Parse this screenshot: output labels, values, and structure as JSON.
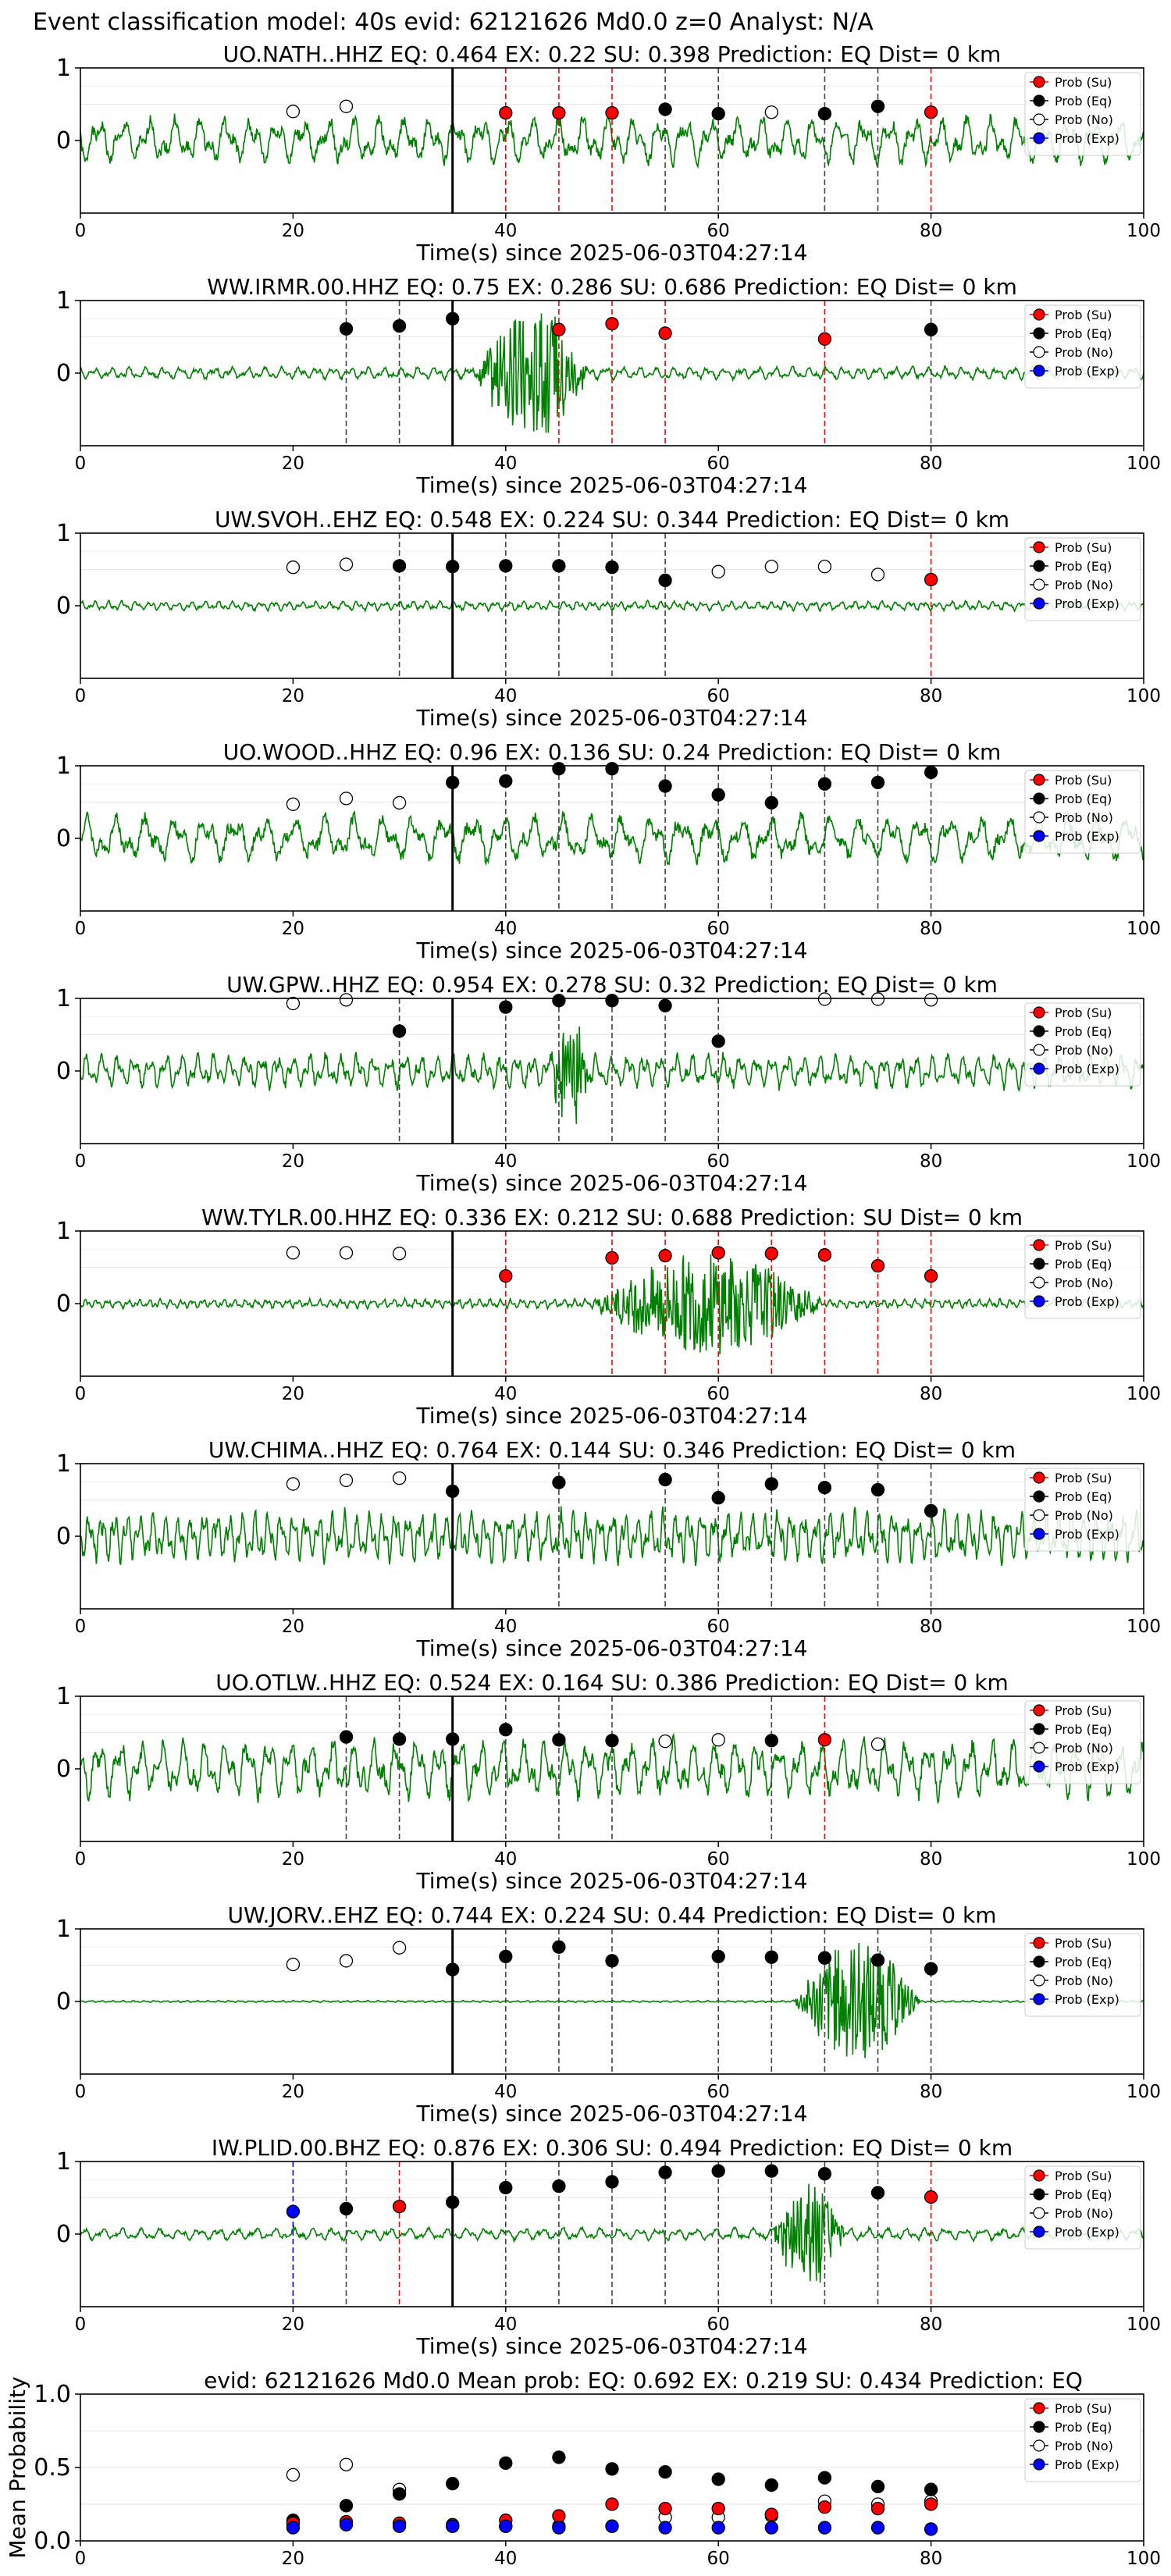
{
  "suptitle": "Event classification model: 40s evid: 62121626 Md0.0 z=0 Analyst: N/A",
  "xlabel": "Time(s) since 2025-06-03T04:27:14",
  "legend": [
    "Prob (Su)",
    "Prob (Eq)",
    "Prob (No)",
    "Prob (Exp)"
  ],
  "colors": {
    "su": "#ff0000",
    "eq": "#000000",
    "no": "#ffffff",
    "exp": "#0000ff",
    "wave": "#008000"
  },
  "chart_data": [
    {
      "type": "line",
      "title": "UO.NATH..HHZ   EQ: 0.464  EX: 0.22  SU: 0.398   Prediction: EQ    Dist= 0 km",
      "xlim": [
        0,
        100
      ],
      "ylim": [
        -1,
        1
      ],
      "xticks": [
        0,
        20,
        40,
        60,
        80,
        100
      ],
      "yticks": [
        0,
        1
      ],
      "pick": 35,
      "wave": {
        "amp": 0.3,
        "burst": null,
        "drift": 0.0,
        "seed": 1,
        "period": 2.4
      },
      "points": [
        {
          "x": 20,
          "cls": "no",
          "y": 0.4
        },
        {
          "x": 25,
          "cls": "no",
          "y": 0.47
        },
        {
          "x": 40,
          "cls": "su",
          "y": 0.38
        },
        {
          "x": 45,
          "cls": "su",
          "y": 0.38
        },
        {
          "x": 50,
          "cls": "su",
          "y": 0.38
        },
        {
          "x": 55,
          "cls": "eq",
          "y": 0.43
        },
        {
          "x": 60,
          "cls": "eq",
          "y": 0.37
        },
        {
          "x": 65,
          "cls": "no",
          "y": 0.39
        },
        {
          "x": 70,
          "cls": "eq",
          "y": 0.37
        },
        {
          "x": 75,
          "cls": "eq",
          "y": 0.47
        },
        {
          "x": 80,
          "cls": "su",
          "y": 0.39
        }
      ]
    },
    {
      "type": "line",
      "title": "WW.IRMR.00.HHZ   EQ: 0.75  EX: 0.286  SU: 0.686   Prediction: EQ    Dist= 0 km",
      "xlim": [
        0,
        100
      ],
      "ylim": [
        -1,
        1
      ],
      "xticks": [
        0,
        20,
        40,
        60,
        80,
        100
      ],
      "yticks": [
        0,
        1
      ],
      "pick": 35,
      "wave": {
        "amp": 0.08,
        "burst": [
          37,
          48,
          0.9
        ],
        "drift": 0.0,
        "seed": 2,
        "period": 1.6
      },
      "points": [
        {
          "x": 25,
          "cls": "eq",
          "y": 0.61
        },
        {
          "x": 30,
          "cls": "eq",
          "y": 0.65
        },
        {
          "x": 35,
          "cls": "eq",
          "y": 0.75
        },
        {
          "x": 45,
          "cls": "su",
          "y": 0.6
        },
        {
          "x": 50,
          "cls": "su",
          "y": 0.68
        },
        {
          "x": 55,
          "cls": "su",
          "y": 0.55
        },
        {
          "x": 70,
          "cls": "su",
          "y": 0.47
        },
        {
          "x": 80,
          "cls": "eq",
          "y": 0.6
        }
      ]
    },
    {
      "type": "line",
      "title": "UW.SVOH..EHZ   EQ: 0.548  EX: 0.224  SU: 0.344   Prediction: EQ    Dist= 0 km",
      "xlim": [
        0,
        100
      ],
      "ylim": [
        -1,
        1
      ],
      "xticks": [
        0,
        20,
        40,
        60,
        80,
        100
      ],
      "yticks": [
        0,
        1
      ],
      "pick": 35,
      "wave": {
        "amp": 0.06,
        "burst": null,
        "drift": 0.0,
        "seed": 3,
        "period": 1.3
      },
      "points": [
        {
          "x": 20,
          "cls": "no",
          "y": 0.53
        },
        {
          "x": 25,
          "cls": "no",
          "y": 0.57
        },
        {
          "x": 30,
          "cls": "eq",
          "y": 0.55
        },
        {
          "x": 35,
          "cls": "eq",
          "y": 0.54
        },
        {
          "x": 40,
          "cls": "eq",
          "y": 0.55
        },
        {
          "x": 45,
          "cls": "eq",
          "y": 0.55
        },
        {
          "x": 50,
          "cls": "eq",
          "y": 0.53
        },
        {
          "x": 55,
          "cls": "eq",
          "y": 0.35
        },
        {
          "x": 60,
          "cls": "no",
          "y": 0.47
        },
        {
          "x": 65,
          "cls": "no",
          "y": 0.54
        },
        {
          "x": 70,
          "cls": "no",
          "y": 0.54
        },
        {
          "x": 75,
          "cls": "no",
          "y": 0.43
        },
        {
          "x": 80,
          "cls": "su",
          "y": 0.36
        }
      ]
    },
    {
      "type": "line",
      "title": "UO.WOOD..HHZ   EQ: 0.96  EX: 0.136  SU: 0.24   Prediction: EQ    Dist= 0 km",
      "xlim": [
        0,
        100
      ],
      "ylim": [
        -1,
        1
      ],
      "xticks": [
        0,
        20,
        40,
        60,
        80,
        100
      ],
      "yticks": [
        0,
        1
      ],
      "pick": 35,
      "wave": {
        "amp": 0.3,
        "burst": null,
        "drift": 0.0,
        "seed": 4,
        "period": 2.8
      },
      "points": [
        {
          "x": 20,
          "cls": "no",
          "y": 0.47
        },
        {
          "x": 25,
          "cls": "no",
          "y": 0.55
        },
        {
          "x": 30,
          "cls": "no",
          "y": 0.49
        },
        {
          "x": 35,
          "cls": "eq",
          "y": 0.77
        },
        {
          "x": 40,
          "cls": "eq",
          "y": 0.79
        },
        {
          "x": 45,
          "cls": "eq",
          "y": 0.96
        },
        {
          "x": 50,
          "cls": "eq",
          "y": 0.96
        },
        {
          "x": 55,
          "cls": "eq",
          "y": 0.72
        },
        {
          "x": 60,
          "cls": "eq",
          "y": 0.6
        },
        {
          "x": 65,
          "cls": "eq",
          "y": 0.49
        },
        {
          "x": 70,
          "cls": "eq",
          "y": 0.75
        },
        {
          "x": 75,
          "cls": "eq",
          "y": 0.77
        },
        {
          "x": 80,
          "cls": "eq",
          "y": 0.91
        }
      ]
    },
    {
      "type": "line",
      "title": "UW.GPW..HHZ   EQ: 0.954  EX: 0.278  SU: 0.32   Prediction: EQ    Dist= 0 km",
      "xlim": [
        0,
        100
      ],
      "ylim": [
        -1,
        1
      ],
      "xticks": [
        0,
        20,
        40,
        60,
        80,
        100
      ],
      "yticks": [
        0,
        1
      ],
      "pick": 35,
      "wave": {
        "amp": 0.22,
        "burst": [
          44,
          48,
          0.7
        ],
        "drift": 0.0,
        "seed": 5,
        "period": 1.5
      },
      "points": [
        {
          "x": 20,
          "cls": "no",
          "y": 0.93
        },
        {
          "x": 25,
          "cls": "no",
          "y": 0.98
        },
        {
          "x": 30,
          "cls": "eq",
          "y": 0.55
        },
        {
          "x": 40,
          "cls": "eq",
          "y": 0.88
        },
        {
          "x": 45,
          "cls": "eq",
          "y": 0.97
        },
        {
          "x": 50,
          "cls": "eq",
          "y": 0.97
        },
        {
          "x": 55,
          "cls": "eq",
          "y": 0.9
        },
        {
          "x": 60,
          "cls": "eq",
          "y": 0.41
        },
        {
          "x": 70,
          "cls": "no",
          "y": 0.99
        },
        {
          "x": 75,
          "cls": "no",
          "y": 0.99
        },
        {
          "x": 80,
          "cls": "no",
          "y": 0.98
        }
      ]
    },
    {
      "type": "line",
      "title": "WW.TYLR.00.HHZ   EQ: 0.336  EX: 0.212  SU: 0.688   Prediction: SU    Dist= 0 km",
      "xlim": [
        0,
        100
      ],
      "ylim": [
        -1,
        1
      ],
      "xticks": [
        0,
        20,
        40,
        60,
        80,
        100
      ],
      "yticks": [
        0,
        1
      ],
      "pick": 35,
      "wave": {
        "amp": 0.06,
        "burst": [
          48,
          70,
          0.7
        ],
        "drift": 0.0,
        "seed": 6,
        "period": 1.0
      },
      "points": [
        {
          "x": 20,
          "cls": "no",
          "y": 0.7
        },
        {
          "x": 25,
          "cls": "no",
          "y": 0.7
        },
        {
          "x": 30,
          "cls": "no",
          "y": 0.69
        },
        {
          "x": 40,
          "cls": "su",
          "y": 0.38
        },
        {
          "x": 50,
          "cls": "su",
          "y": 0.63
        },
        {
          "x": 55,
          "cls": "su",
          "y": 0.66
        },
        {
          "x": 60,
          "cls": "su",
          "y": 0.7
        },
        {
          "x": 65,
          "cls": "su",
          "y": 0.69
        },
        {
          "x": 70,
          "cls": "su",
          "y": 0.67
        },
        {
          "x": 75,
          "cls": "su",
          "y": 0.52
        },
        {
          "x": 80,
          "cls": "su",
          "y": 0.38
        }
      ]
    },
    {
      "type": "line",
      "title": "UW.CHIMA..HHZ   EQ: 0.764  EX: 0.144  SU: 0.346   Prediction: EQ    Dist= 0 km",
      "xlim": [
        0,
        100
      ],
      "ylim": [
        -1,
        1
      ],
      "xticks": [
        0,
        20,
        40,
        60,
        80,
        100
      ],
      "yticks": [
        0,
        1
      ],
      "pick": 35,
      "wave": {
        "amp": 0.33,
        "burst": null,
        "drift": 0.0,
        "seed": 7,
        "period": 1.2
      },
      "points": [
        {
          "x": 20,
          "cls": "no",
          "y": 0.72
        },
        {
          "x": 25,
          "cls": "no",
          "y": 0.77
        },
        {
          "x": 30,
          "cls": "no",
          "y": 0.8
        },
        {
          "x": 35,
          "cls": "eq",
          "y": 0.62
        },
        {
          "x": 45,
          "cls": "eq",
          "y": 0.74
        },
        {
          "x": 55,
          "cls": "eq",
          "y": 0.78
        },
        {
          "x": 60,
          "cls": "eq",
          "y": 0.53
        },
        {
          "x": 65,
          "cls": "eq",
          "y": 0.72
        },
        {
          "x": 70,
          "cls": "eq",
          "y": 0.67
        },
        {
          "x": 75,
          "cls": "eq",
          "y": 0.64
        },
        {
          "x": 80,
          "cls": "eq",
          "y": 0.35
        }
      ]
    },
    {
      "type": "line",
      "title": "UO.OTLW..HHZ   EQ: 0.524  EX: 0.164  SU: 0.386   Prediction: EQ    Dist= 0 km",
      "xlim": [
        0,
        100
      ],
      "ylim": [
        -1,
        1
      ],
      "xticks": [
        0,
        20,
        40,
        60,
        80,
        100
      ],
      "yticks": [
        0,
        1
      ],
      "pick": 35,
      "wave": {
        "amp": 0.38,
        "burst": null,
        "drift": 0.0,
        "seed": 8,
        "period": 2.0
      },
      "points": [
        {
          "x": 25,
          "cls": "eq",
          "y": 0.44
        },
        {
          "x": 30,
          "cls": "eq",
          "y": 0.41
        },
        {
          "x": 35,
          "cls": "eq",
          "y": 0.41
        },
        {
          "x": 40,
          "cls": "eq",
          "y": 0.54
        },
        {
          "x": 45,
          "cls": "eq",
          "y": 0.4
        },
        {
          "x": 50,
          "cls": "eq",
          "y": 0.39
        },
        {
          "x": 55,
          "cls": "no",
          "y": 0.38
        },
        {
          "x": 60,
          "cls": "no",
          "y": 0.4
        },
        {
          "x": 65,
          "cls": "eq",
          "y": 0.39
        },
        {
          "x": 70,
          "cls": "su",
          "y": 0.4
        },
        {
          "x": 75,
          "cls": "no",
          "y": 0.34
        }
      ]
    },
    {
      "type": "line",
      "title": "UW.JORV..EHZ   EQ: 0.744  EX: 0.224  SU: 0.44   Prediction: EQ    Dist= 0 km",
      "xlim": [
        0,
        100
      ],
      "ylim": [
        -1,
        1
      ],
      "xticks": [
        0,
        20,
        40,
        60,
        80,
        100
      ],
      "yticks": [
        0,
        1
      ],
      "pick": 35,
      "wave": {
        "amp": 0.012,
        "burst": [
          67,
          79,
          0.85
        ],
        "drift": 0.0,
        "seed": 9,
        "period": 1.0
      },
      "points": [
        {
          "x": 20,
          "cls": "no",
          "y": 0.51
        },
        {
          "x": 25,
          "cls": "no",
          "y": 0.56
        },
        {
          "x": 30,
          "cls": "no",
          "y": 0.74
        },
        {
          "x": 35,
          "cls": "eq",
          "y": 0.44
        },
        {
          "x": 40,
          "cls": "eq",
          "y": 0.62
        },
        {
          "x": 45,
          "cls": "eq",
          "y": 0.75
        },
        {
          "x": 50,
          "cls": "eq",
          "y": 0.56
        },
        {
          "x": 60,
          "cls": "eq",
          "y": 0.62
        },
        {
          "x": 65,
          "cls": "eq",
          "y": 0.61
        },
        {
          "x": 70,
          "cls": "eq",
          "y": 0.6
        },
        {
          "x": 75,
          "cls": "eq",
          "y": 0.57
        },
        {
          "x": 80,
          "cls": "eq",
          "y": 0.45
        }
      ]
    },
    {
      "type": "line",
      "title": "IW.PLID.00.BHZ   EQ: 0.876  EX: 0.306  SU: 0.494   Prediction: EQ    Dist= 0 km",
      "xlim": [
        0,
        100
      ],
      "ylim": [
        -1,
        1
      ],
      "xticks": [
        0,
        20,
        40,
        60,
        80,
        100
      ],
      "yticks": [
        0,
        1
      ],
      "pick": 35,
      "wave": {
        "amp": 0.08,
        "burst": [
          65,
          72,
          0.75
        ],
        "drift": 0.0,
        "seed": 10,
        "period": 1.8
      },
      "points": [
        {
          "x": 20,
          "cls": "exp",
          "y": 0.31
        },
        {
          "x": 25,
          "cls": "eq",
          "y": 0.35
        },
        {
          "x": 30,
          "cls": "su",
          "y": 0.38
        },
        {
          "x": 35,
          "cls": "eq",
          "y": 0.44
        },
        {
          "x": 40,
          "cls": "eq",
          "y": 0.64
        },
        {
          "x": 45,
          "cls": "eq",
          "y": 0.66
        },
        {
          "x": 50,
          "cls": "eq",
          "y": 0.72
        },
        {
          "x": 55,
          "cls": "eq",
          "y": 0.85
        },
        {
          "x": 60,
          "cls": "eq",
          "y": 0.87
        },
        {
          "x": 65,
          "cls": "eq",
          "y": 0.87
        },
        {
          "x": 70,
          "cls": "eq",
          "y": 0.83
        },
        {
          "x": 75,
          "cls": "eq",
          "y": 0.57
        },
        {
          "x": 80,
          "cls": "su",
          "y": 0.51
        }
      ]
    },
    {
      "type": "scatter",
      "title": "evid: 62121626  Md0.0   Mean prob:   EQ: 0.692  EX: 0.219  SU: 0.434   Prediction: EQ",
      "xlim": [
        0,
        100
      ],
      "ylim": [
        0,
        1.0
      ],
      "xticks": [
        0,
        20,
        40,
        60,
        80,
        100
      ],
      "yticks": [
        0.0,
        0.5,
        1.0
      ],
      "ytick_labels": [
        "0.0",
        "0.5",
        "1.0"
      ],
      "ylabel": "Mean Probability",
      "series": [
        {
          "name": "Prob (No)",
          "cls": "no",
          "x": [
            20,
            25,
            30,
            35,
            40,
            45,
            50,
            55,
            60,
            65,
            70,
            75,
            80
          ],
          "y": [
            0.45,
            0.52,
            0.35,
            0.1,
            0.1,
            0.1,
            0.1,
            0.16,
            0.16,
            0.17,
            0.27,
            0.25,
            0.27
          ]
        },
        {
          "name": "Prob (Eq)",
          "cls": "eq",
          "x": [
            20,
            25,
            30,
            35,
            40,
            45,
            50,
            55,
            60,
            65,
            70,
            75,
            80
          ],
          "y": [
            0.14,
            0.24,
            0.32,
            0.39,
            0.53,
            0.57,
            0.49,
            0.47,
            0.42,
            0.38,
            0.43,
            0.37,
            0.35
          ]
        },
        {
          "name": "Prob (Su)",
          "cls": "su",
          "x": [
            20,
            25,
            30,
            35,
            40,
            45,
            50,
            55,
            60,
            65,
            70,
            75,
            80
          ],
          "y": [
            0.12,
            0.13,
            0.12,
            0.11,
            0.14,
            0.17,
            0.25,
            0.22,
            0.22,
            0.18,
            0.23,
            0.22,
            0.25
          ]
        },
        {
          "name": "Prob (Exp)",
          "cls": "exp",
          "x": [
            20,
            25,
            30,
            35,
            40,
            45,
            50,
            55,
            60,
            65,
            70,
            75,
            80
          ],
          "y": [
            0.09,
            0.11,
            0.1,
            0.1,
            0.1,
            0.09,
            0.1,
            0.09,
            0.09,
            0.09,
            0.09,
            0.09,
            0.08
          ]
        }
      ]
    }
  ]
}
